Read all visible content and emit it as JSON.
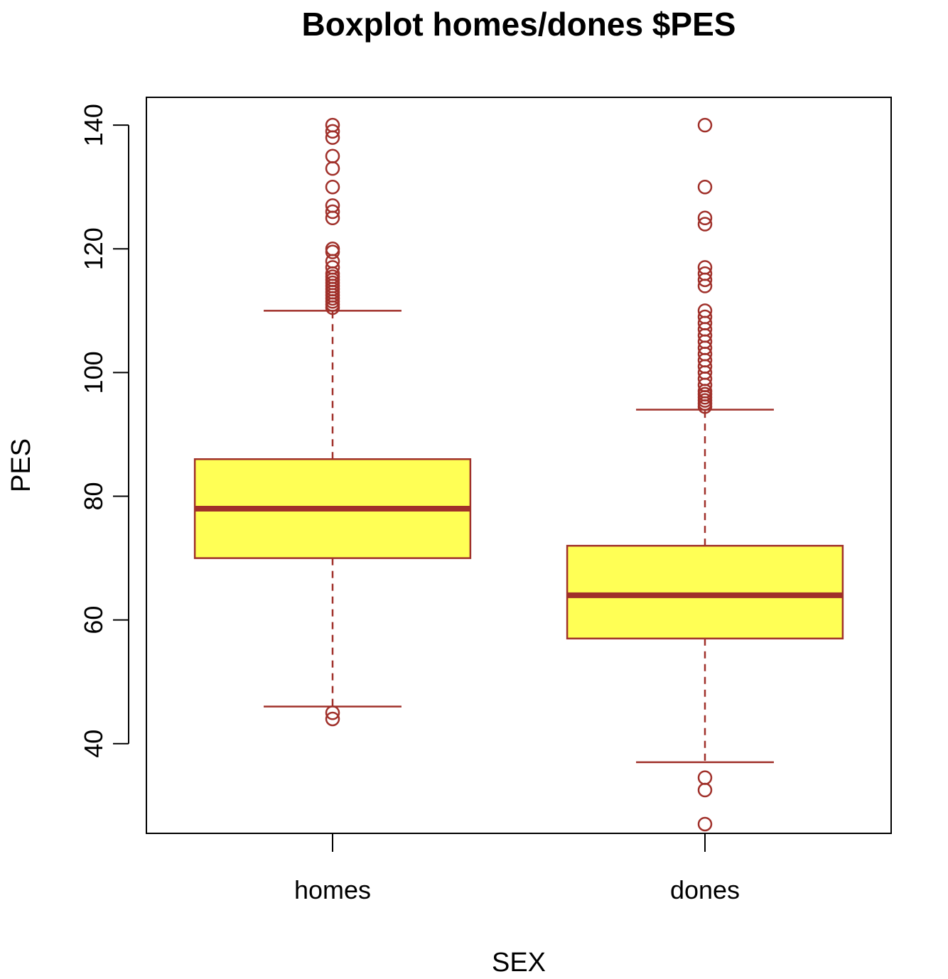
{
  "chart_data": {
    "type": "boxplot",
    "title": "Boxplot homes/dones $PES",
    "xlabel": "SEX",
    "ylabel": "PES",
    "categories": [
      "homes",
      "dones"
    ],
    "y_ticks": [
      "40",
      "60",
      "80",
      "100",
      "120",
      "140"
    ],
    "ylim": [
      25.5,
      144.5
    ],
    "grid": false,
    "colors": {
      "box_fill": "#FFFF55",
      "box_border": "#A0302A",
      "outline": "#000000"
    },
    "boxes": [
      {
        "category": "homes",
        "whisker_low": 46,
        "q1": 70,
        "median": 78,
        "q3": 86,
        "whisker_high": 110,
        "outliers": [
          44,
          45,
          110.5,
          111,
          111.5,
          112,
          112.5,
          113,
          113.5,
          114,
          114.5,
          115,
          115.5,
          116,
          117,
          118,
          119.5,
          120,
          125,
          126,
          127,
          130,
          133,
          135,
          138,
          139,
          140
        ]
      },
      {
        "category": "dones",
        "whisker_low": 37,
        "q1": 57,
        "median": 64,
        "q3": 72,
        "whisker_high": 94,
        "outliers": [
          27,
          32.5,
          34.5,
          94.5,
          95,
          95.5,
          96,
          96.5,
          97,
          98,
          99,
          100,
          101,
          102,
          103,
          104,
          105,
          106,
          107,
          108,
          109,
          110,
          114,
          115,
          116,
          117,
          124,
          125,
          130,
          140
        ]
      }
    ]
  }
}
